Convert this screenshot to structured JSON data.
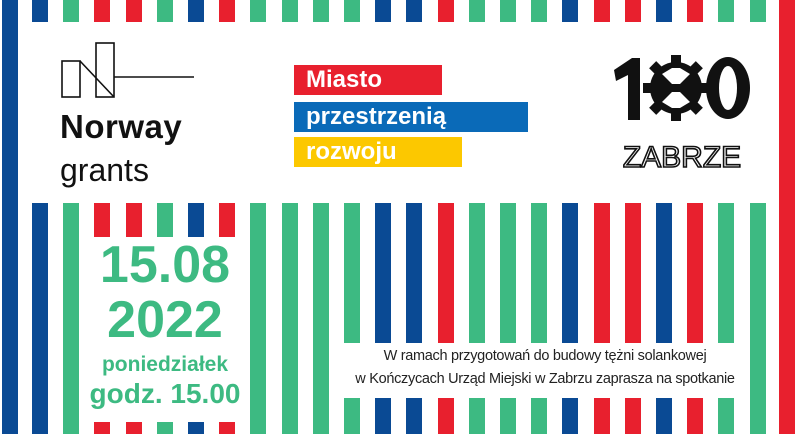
{
  "colors": {
    "blue": "#0a4a94",
    "red": "#e8202e",
    "green": "#3dba82",
    "yellow": "#fcc800"
  },
  "stripe_colors": [
    "blue",
    "green",
    "red",
    "red",
    "green",
    "blue",
    "red",
    "green",
    "green",
    "green",
    "green",
    "blue",
    "blue",
    "red",
    "green",
    "green",
    "green",
    "blue",
    "red",
    "red",
    "blue",
    "red",
    "green",
    "green"
  ],
  "norway_grants": {
    "name": "Norway",
    "sub": "grants"
  },
  "slogan": {
    "line1": "Miasto",
    "line2": "przestrzenią",
    "line3": "rozwoju"
  },
  "zabrze_logo": {
    "number": "100",
    "text": "ZABRZE"
  },
  "event": {
    "date": "15.08",
    "year": "2022",
    "weekday": "poniedziałek",
    "time": "godz. 15.00"
  },
  "info": {
    "line1": "W ramach przygotowań do budowy tężni solankowej",
    "line2": "w Kończycach Urząd Miejski w Zabrzu zaprasza na spotkanie"
  }
}
